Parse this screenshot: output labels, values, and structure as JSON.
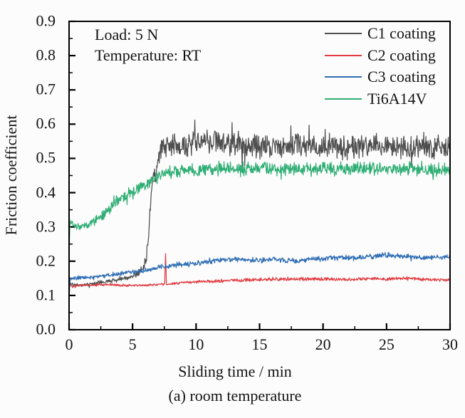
{
  "figure": {
    "annotation": {
      "load": "Load: 5 N",
      "temperature": "Temperature: RT"
    },
    "axes": {
      "x_label": "Sliding time / min",
      "y_label": "Friction coefficient",
      "x_tick_labels": [
        "0",
        "5",
        "10",
        "15",
        "20",
        "25",
        "30"
      ],
      "y_tick_labels": [
        "0.0",
        "0.1",
        "0.2",
        "0.3",
        "0.4",
        "0.5",
        "0.6",
        "0.7",
        "0.8",
        "0.9"
      ]
    },
    "caption": "(a) room temperature"
  },
  "chart_data": {
    "type": "line",
    "title": "",
    "xlabel": "Sliding time / min",
    "ylabel": "Friction coefficient",
    "xlim": [
      0,
      30
    ],
    "ylim": [
      0,
      0.9
    ],
    "x_ticks": [
      0,
      5,
      10,
      15,
      20,
      25,
      30
    ],
    "y_ticks": [
      0,
      0.1,
      0.2,
      0.3,
      0.4,
      0.5,
      0.6,
      0.7,
      0.8,
      0.9
    ],
    "x_minor_ticks": [
      2.5,
      7.5,
      12.5,
      17.5,
      22.5,
      27.5
    ],
    "y_minor_step": 0.05,
    "grid": false,
    "legend_position": "top-right-inside",
    "annotations": [
      "Load: 5 N",
      "Temperature: RT"
    ],
    "axis_color": "#000000",
    "series": [
      {
        "name": "C1 coating",
        "slug": "c1-coating",
        "color": "#4f4f4f",
        "seed": 11,
        "burst_p": 0.07,
        "burst_k": 1.9,
        "anchors": [
          [
            0,
            0.135,
            0.004
          ],
          [
            0.5,
            0.131,
            0.004
          ],
          [
            1,
            0.13,
            0.004
          ],
          [
            2,
            0.135,
            0.005
          ],
          [
            3,
            0.141,
            0.005
          ],
          [
            4,
            0.148,
            0.005
          ],
          [
            5,
            0.156,
            0.006
          ],
          [
            5.5,
            0.166,
            0.009
          ],
          [
            5.9,
            0.186,
            0.013
          ],
          [
            6.1,
            0.215,
            0.015
          ],
          [
            6.25,
            0.27,
            0.012
          ],
          [
            6.4,
            0.36,
            0.015
          ],
          [
            6.55,
            0.44,
            0.018
          ],
          [
            6.7,
            0.465,
            0.02
          ],
          [
            6.85,
            0.435,
            0.018
          ],
          [
            7,
            0.5,
            0.022
          ],
          [
            7.3,
            0.53,
            0.026
          ],
          [
            8,
            0.535,
            0.028
          ],
          [
            9,
            0.54,
            0.028
          ],
          [
            10,
            0.545,
            0.029
          ],
          [
            11,
            0.55,
            0.029
          ],
          [
            12,
            0.545,
            0.029
          ],
          [
            13,
            0.54,
            0.028
          ],
          [
            14,
            0.535,
            0.028
          ],
          [
            15,
            0.535,
            0.028
          ],
          [
            16,
            0.53,
            0.028
          ],
          [
            17,
            0.535,
            0.028
          ],
          [
            18,
            0.54,
            0.028
          ],
          [
            19,
            0.535,
            0.028
          ],
          [
            20,
            0.54,
            0.028
          ],
          [
            21,
            0.535,
            0.028
          ],
          [
            22,
            0.53,
            0.028
          ],
          [
            23,
            0.535,
            0.028
          ],
          [
            24,
            0.54,
            0.028
          ],
          [
            25,
            0.535,
            0.028
          ],
          [
            26,
            0.53,
            0.028
          ],
          [
            27,
            0.535,
            0.028
          ],
          [
            28,
            0.53,
            0.028
          ],
          [
            29,
            0.535,
            0.028
          ],
          [
            30,
            0.53,
            0.026
          ]
        ],
        "spikes": [
          [
            6.15,
            0.248
          ]
        ]
      },
      {
        "name": "C2 coating",
        "slug": "c2-coating",
        "color": "#e23b41",
        "seed": 22,
        "burst_p": 0.04,
        "burst_k": 1.5,
        "anchors": [
          [
            0,
            0.138,
            0.003
          ],
          [
            0.2,
            0.127,
            0.003
          ],
          [
            1,
            0.13,
            0.003
          ],
          [
            2,
            0.131,
            0.003
          ],
          [
            3,
            0.132,
            0.003
          ],
          [
            4,
            0.13,
            0.003
          ],
          [
            5,
            0.129,
            0.003
          ],
          [
            6,
            0.13,
            0.003
          ],
          [
            7,
            0.132,
            0.003
          ],
          [
            8,
            0.134,
            0.003
          ],
          [
            9,
            0.137,
            0.003
          ],
          [
            10,
            0.14,
            0.003
          ],
          [
            11,
            0.141,
            0.004
          ],
          [
            12,
            0.142,
            0.004
          ],
          [
            13,
            0.144,
            0.004
          ],
          [
            14,
            0.145,
            0.004
          ],
          [
            15,
            0.146,
            0.004
          ],
          [
            16,
            0.147,
            0.004
          ],
          [
            17,
            0.147,
            0.004
          ],
          [
            18,
            0.148,
            0.004
          ],
          [
            19,
            0.147,
            0.004
          ],
          [
            20,
            0.148,
            0.004
          ],
          [
            21,
            0.147,
            0.004
          ],
          [
            22,
            0.146,
            0.004
          ],
          [
            23,
            0.148,
            0.004
          ],
          [
            24,
            0.15,
            0.004
          ],
          [
            25,
            0.148,
            0.004
          ],
          [
            26,
            0.149,
            0.004
          ],
          [
            27,
            0.15,
            0.004
          ],
          [
            28,
            0.147,
            0.004
          ],
          [
            29,
            0.146,
            0.004
          ],
          [
            30,
            0.145,
            0.004
          ]
        ],
        "spikes": [
          [
            7.6,
            0.222
          ]
        ]
      },
      {
        "name": "C3 coating",
        "slug": "c3-coating",
        "color": "#2e6db4",
        "seed": 33,
        "burst_p": 0.05,
        "burst_k": 1.6,
        "anchors": [
          [
            0,
            0.09,
            0.002
          ],
          [
            0.08,
            0.148,
            0.004
          ],
          [
            0.5,
            0.15,
            0.005
          ],
          [
            1,
            0.152,
            0.005
          ],
          [
            2,
            0.154,
            0.005
          ],
          [
            3,
            0.158,
            0.005
          ],
          [
            4,
            0.163,
            0.005
          ],
          [
            5,
            0.168,
            0.005
          ],
          [
            6,
            0.172,
            0.006
          ],
          [
            7,
            0.182,
            0.006
          ],
          [
            8,
            0.186,
            0.006
          ],
          [
            9,
            0.19,
            0.006
          ],
          [
            10,
            0.193,
            0.006
          ],
          [
            11,
            0.198,
            0.006
          ],
          [
            12,
            0.203,
            0.006
          ],
          [
            13,
            0.205,
            0.006
          ],
          [
            14,
            0.204,
            0.006
          ],
          [
            15,
            0.203,
            0.006
          ],
          [
            16,
            0.205,
            0.006
          ],
          [
            17,
            0.203,
            0.006
          ],
          [
            18,
            0.2,
            0.006
          ],
          [
            19,
            0.205,
            0.006
          ],
          [
            20,
            0.208,
            0.006
          ],
          [
            21,
            0.21,
            0.006
          ],
          [
            22,
            0.21,
            0.006
          ],
          [
            23,
            0.212,
            0.006
          ],
          [
            24,
            0.214,
            0.006
          ],
          [
            25,
            0.218,
            0.007
          ],
          [
            26,
            0.214,
            0.006
          ],
          [
            27,
            0.212,
            0.006
          ],
          [
            28,
            0.21,
            0.006
          ],
          [
            29,
            0.212,
            0.006
          ],
          [
            30,
            0.213,
            0.006
          ]
        ],
        "spikes": []
      },
      {
        "name": "Ti6A14V",
        "slug": "ti6a14v",
        "color": "#2fae74",
        "seed": 44,
        "burst_p": 0.06,
        "burst_k": 1.7,
        "anchors": [
          [
            0,
            0.205,
            0.004
          ],
          [
            0.06,
            0.315,
            0.008
          ],
          [
            0.3,
            0.308,
            0.008
          ],
          [
            0.7,
            0.3,
            0.008
          ],
          [
            1,
            0.301,
            0.009
          ],
          [
            1.5,
            0.308,
            0.01
          ],
          [
            2,
            0.318,
            0.012
          ],
          [
            2.5,
            0.33,
            0.012
          ],
          [
            3,
            0.345,
            0.013
          ],
          [
            3.5,
            0.362,
            0.013
          ],
          [
            4,
            0.378,
            0.013
          ],
          [
            4.5,
            0.392,
            0.013
          ],
          [
            5,
            0.405,
            0.014
          ],
          [
            5.5,
            0.415,
            0.014
          ],
          [
            6,
            0.425,
            0.014
          ],
          [
            6.5,
            0.437,
            0.015
          ],
          [
            7,
            0.447,
            0.015
          ],
          [
            7.5,
            0.455,
            0.015
          ],
          [
            8,
            0.46,
            0.016
          ],
          [
            9,
            0.462,
            0.016
          ],
          [
            10,
            0.465,
            0.017
          ],
          [
            11,
            0.468,
            0.017
          ],
          [
            12,
            0.472,
            0.017
          ],
          [
            13,
            0.47,
            0.017
          ],
          [
            14,
            0.468,
            0.017
          ],
          [
            15,
            0.47,
            0.017
          ],
          [
            16,
            0.472,
            0.017
          ],
          [
            17,
            0.47,
            0.017
          ],
          [
            18,
            0.468,
            0.017
          ],
          [
            19,
            0.47,
            0.017
          ],
          [
            20,
            0.472,
            0.017
          ],
          [
            21,
            0.47,
            0.017
          ],
          [
            22,
            0.468,
            0.017
          ],
          [
            23,
            0.47,
            0.017
          ],
          [
            24,
            0.472,
            0.017
          ],
          [
            25,
            0.47,
            0.017
          ],
          [
            26,
            0.468,
            0.017
          ],
          [
            27,
            0.47,
            0.017
          ],
          [
            28,
            0.47,
            0.017
          ],
          [
            29,
            0.468,
            0.017
          ],
          [
            30,
            0.468,
            0.016
          ]
        ],
        "spikes": []
      }
    ]
  }
}
